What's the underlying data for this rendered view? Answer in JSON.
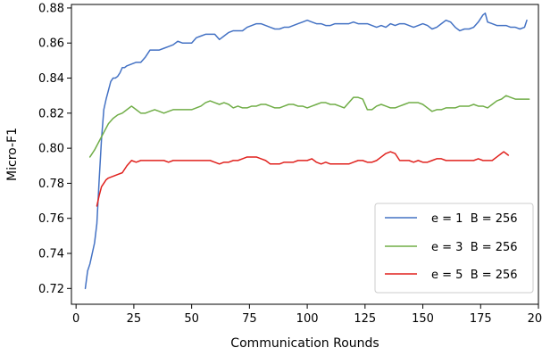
{
  "chart_data": {
    "type": "line",
    "title": "",
    "xlabel": "Communication Rounds",
    "ylabel": "Micro-F1",
    "xlim": [
      -2,
      200
    ],
    "ylim": [
      0.711,
      0.882
    ],
    "xticks": [
      0,
      25,
      50,
      75,
      100,
      125,
      150,
      175,
      200
    ],
    "yticks": [
      0.72,
      0.74,
      0.76,
      0.78,
      0.8,
      0.82,
      0.84,
      0.86,
      0.88
    ],
    "xtick_labels": [
      "0",
      "25",
      "50",
      "75",
      "100",
      "125",
      "150",
      "175",
      "200"
    ],
    "ytick_labels": [
      "0.72",
      "0.74",
      "0.76",
      "0.78",
      "0.80",
      "0.82",
      "0.84",
      "0.86",
      "0.88"
    ],
    "grid": false,
    "legend_position": "bottom-right",
    "series": [
      {
        "name": "e = 1  B = 256",
        "color": "#4472c4",
        "x": [
          4,
          5,
          6,
          7,
          8,
          9,
          10,
          11,
          12,
          13,
          14,
          15,
          16,
          17,
          18,
          19,
          20,
          21,
          22,
          24,
          26,
          28,
          30,
          32,
          34,
          36,
          38,
          40,
          42,
          44,
          46,
          48,
          50,
          52,
          54,
          56,
          58,
          60,
          62,
          64,
          66,
          68,
          70,
          72,
          74,
          76,
          78,
          80,
          82,
          84,
          86,
          88,
          90,
          92,
          94,
          96,
          98,
          100,
          102,
          104,
          106,
          108,
          110,
          112,
          114,
          116,
          118,
          120,
          122,
          124,
          126,
          128,
          130,
          132,
          134,
          136,
          138,
          140,
          142,
          144,
          146,
          148,
          150,
          152,
          154,
          156,
          158,
          160,
          162,
          164,
          166,
          168,
          170,
          172,
          174,
          176,
          177,
          178,
          180,
          182,
          184,
          186,
          188,
          190,
          192,
          194,
          195
        ],
        "values": [
          0.72,
          0.73,
          0.734,
          0.74,
          0.746,
          0.757,
          0.782,
          0.805,
          0.822,
          0.828,
          0.833,
          0.838,
          0.84,
          0.84,
          0.841,
          0.843,
          0.846,
          0.846,
          0.847,
          0.848,
          0.849,
          0.849,
          0.852,
          0.856,
          0.856,
          0.856,
          0.857,
          0.858,
          0.859,
          0.861,
          0.86,
          0.86,
          0.86,
          0.863,
          0.864,
          0.865,
          0.865,
          0.865,
          0.862,
          0.864,
          0.866,
          0.867,
          0.867,
          0.867,
          0.869,
          0.87,
          0.871,
          0.871,
          0.87,
          0.869,
          0.868,
          0.868,
          0.869,
          0.869,
          0.87,
          0.871,
          0.872,
          0.873,
          0.872,
          0.871,
          0.871,
          0.87,
          0.87,
          0.871,
          0.871,
          0.871,
          0.871,
          0.872,
          0.871,
          0.871,
          0.871,
          0.87,
          0.869,
          0.87,
          0.869,
          0.871,
          0.87,
          0.871,
          0.871,
          0.87,
          0.869,
          0.87,
          0.871,
          0.87,
          0.868,
          0.869,
          0.871,
          0.873,
          0.872,
          0.869,
          0.867,
          0.868,
          0.868,
          0.869,
          0.872,
          0.876,
          0.877,
          0.872,
          0.871,
          0.87,
          0.87,
          0.87,
          0.869,
          0.869,
          0.868,
          0.869,
          0.873
        ]
      },
      {
        "name": "e = 3  B = 256",
        "color": "#70ad47",
        "x": [
          6,
          8,
          10,
          12,
          14,
          16,
          18,
          20,
          22,
          24,
          26,
          28,
          30,
          32,
          34,
          36,
          38,
          40,
          42,
          44,
          46,
          48,
          50,
          52,
          54,
          56,
          58,
          60,
          62,
          64,
          66,
          68,
          70,
          72,
          74,
          76,
          78,
          80,
          82,
          84,
          86,
          88,
          90,
          92,
          94,
          96,
          98,
          100,
          102,
          104,
          106,
          108,
          110,
          112,
          114,
          116,
          118,
          120,
          122,
          124,
          126,
          128,
          130,
          132,
          134,
          136,
          138,
          140,
          142,
          144,
          146,
          148,
          150,
          152,
          154,
          156,
          158,
          160,
          162,
          164,
          166,
          168,
          170,
          172,
          174,
          176,
          178,
          180,
          182,
          184,
          186,
          188,
          190,
          192,
          194,
          196
        ],
        "values": [
          0.795,
          0.799,
          0.804,
          0.809,
          0.814,
          0.817,
          0.819,
          0.82,
          0.822,
          0.824,
          0.822,
          0.82,
          0.82,
          0.821,
          0.822,
          0.821,
          0.82,
          0.821,
          0.822,
          0.822,
          0.822,
          0.822,
          0.822,
          0.823,
          0.824,
          0.826,
          0.827,
          0.826,
          0.825,
          0.826,
          0.825,
          0.823,
          0.824,
          0.823,
          0.823,
          0.824,
          0.824,
          0.825,
          0.825,
          0.824,
          0.823,
          0.823,
          0.824,
          0.825,
          0.825,
          0.824,
          0.824,
          0.823,
          0.824,
          0.825,
          0.826,
          0.826,
          0.825,
          0.825,
          0.824,
          0.823,
          0.826,
          0.829,
          0.829,
          0.828,
          0.822,
          0.822,
          0.824,
          0.825,
          0.824,
          0.823,
          0.823,
          0.824,
          0.825,
          0.826,
          0.826,
          0.826,
          0.825,
          0.823,
          0.821,
          0.822,
          0.822,
          0.823,
          0.823,
          0.823,
          0.824,
          0.824,
          0.824,
          0.825,
          0.824,
          0.824,
          0.823,
          0.825,
          0.827,
          0.828,
          0.83,
          0.829,
          0.828,
          0.828,
          0.828,
          0.828
        ]
      },
      {
        "name": "e = 5  B = 256",
        "color": "#e0211d",
        "x": [
          9,
          10,
          11,
          12,
          13,
          14,
          16,
          18,
          20,
          22,
          24,
          26,
          28,
          30,
          32,
          34,
          36,
          38,
          40,
          42,
          44,
          46,
          48,
          50,
          52,
          54,
          56,
          58,
          60,
          62,
          64,
          66,
          68,
          70,
          72,
          74,
          76,
          78,
          80,
          82,
          84,
          86,
          88,
          90,
          92,
          94,
          96,
          98,
          100,
          102,
          104,
          106,
          108,
          110,
          112,
          114,
          116,
          118,
          120,
          122,
          124,
          126,
          128,
          130,
          132,
          134,
          136,
          138,
          140,
          142,
          144,
          146,
          148,
          150,
          152,
          154,
          156,
          158,
          160,
          162,
          164,
          166,
          168,
          170,
          172,
          174,
          176,
          178,
          180,
          182,
          184,
          185,
          186,
          187
        ],
        "values": [
          0.767,
          0.773,
          0.778,
          0.78,
          0.782,
          0.783,
          0.784,
          0.785,
          0.786,
          0.79,
          0.793,
          0.792,
          0.793,
          0.793,
          0.793,
          0.793,
          0.793,
          0.793,
          0.792,
          0.793,
          0.793,
          0.793,
          0.793,
          0.793,
          0.793,
          0.793,
          0.793,
          0.793,
          0.792,
          0.791,
          0.792,
          0.792,
          0.793,
          0.793,
          0.794,
          0.795,
          0.795,
          0.795,
          0.794,
          0.793,
          0.791,
          0.791,
          0.791,
          0.792,
          0.792,
          0.792,
          0.793,
          0.793,
          0.793,
          0.794,
          0.792,
          0.791,
          0.792,
          0.791,
          0.791,
          0.791,
          0.791,
          0.791,
          0.792,
          0.793,
          0.793,
          0.792,
          0.792,
          0.793,
          0.795,
          0.797,
          0.798,
          0.797,
          0.793,
          0.793,
          0.793,
          0.792,
          0.793,
          0.792,
          0.792,
          0.793,
          0.794,
          0.794,
          0.793,
          0.793,
          0.793,
          0.793,
          0.793,
          0.793,
          0.793,
          0.794,
          0.793,
          0.793,
          0.793,
          0.795,
          0.797,
          0.798,
          0.797,
          0.796
        ]
      }
    ]
  }
}
